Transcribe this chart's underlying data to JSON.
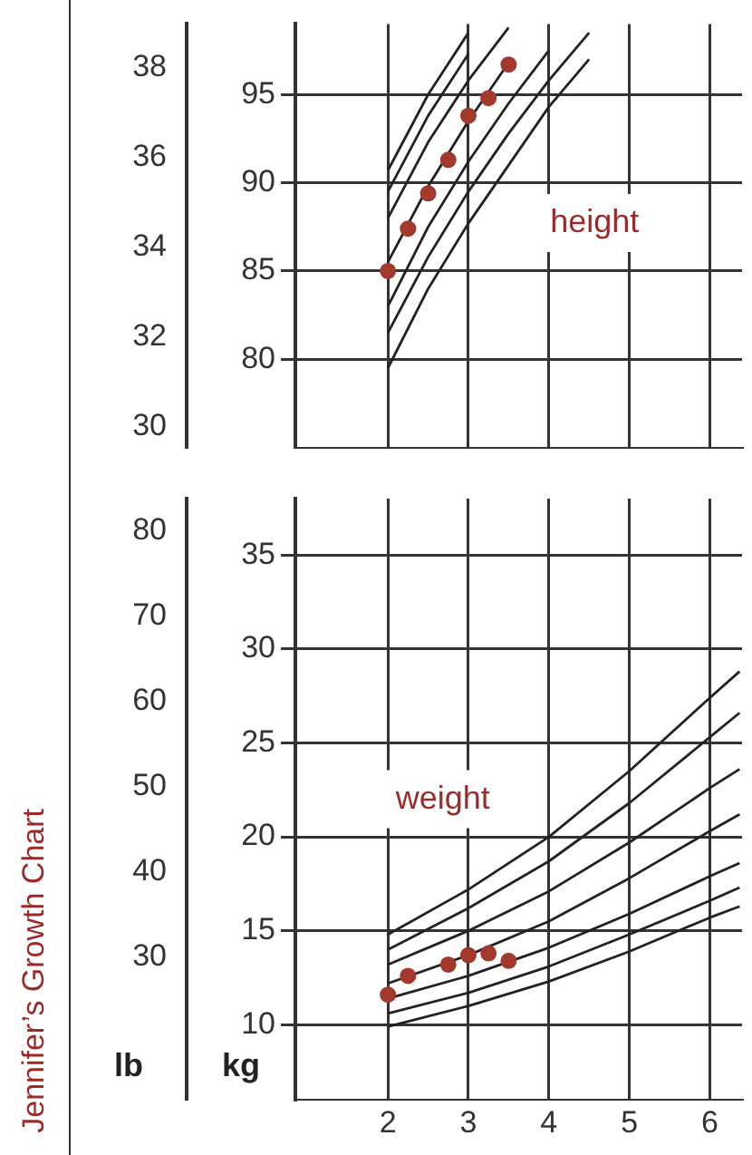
{
  "chart_data": [
    {
      "type": "line",
      "annotations": [
        "height"
      ],
      "xlim": [
        0.85,
        6.4
      ],
      "xticks": [
        2,
        3,
        4,
        5,
        6
      ],
      "ylim": [
        75,
        99
      ],
      "yticks": [
        80,
        85,
        90,
        95
      ],
      "y2lim": [
        29.53,
        38.98
      ],
      "y2ticks": [
        30,
        32,
        34,
        36,
        38
      ],
      "grid": true,
      "legend": false,
      "tick_labels": "y",
      "line_style": "solid",
      "series": [
        {
          "color": "#222222",
          "marker": "none",
          "x": [
            2,
            2.5,
            3
          ],
          "values": [
            90.7,
            95,
            98.5
          ]
        },
        {
          "color": "#222222",
          "marker": "none",
          "x": [
            2,
            2.5,
            3
          ],
          "values": [
            89.5,
            93.8,
            97.3
          ]
        },
        {
          "color": "#222222",
          "marker": "none",
          "x": [
            2,
            2.5,
            3,
            3.5
          ],
          "values": [
            88,
            92.3,
            95.8,
            98.8
          ]
        },
        {
          "color": "#222222",
          "marker": "none",
          "x": [
            2,
            2.5,
            3,
            3.5
          ],
          "values": [
            85.5,
            89.8,
            93.5,
            96.8
          ]
        },
        {
          "color": "#222222",
          "marker": "none",
          "x": [
            2,
            2.5,
            3,
            3.5,
            4
          ],
          "values": [
            83,
            87.5,
            91.2,
            94.5,
            97.5
          ]
        },
        {
          "color": "#222222",
          "marker": "none",
          "x": [
            2,
            2.5,
            3,
            3.5,
            4,
            4.5
          ],
          "values": [
            81.5,
            85.8,
            89.5,
            92.8,
            95.8,
            98.5
          ]
        },
        {
          "color": "#222222",
          "marker": "none",
          "x": [
            2,
            2.5,
            3,
            3.5,
            4,
            4.5
          ],
          "values": [
            79.5,
            84,
            87.7,
            91,
            94.3,
            97
          ]
        },
        {
          "type": "scatter",
          "color": "#a3392c",
          "marker": "circle",
          "x": [
            2,
            2.25,
            2.5,
            2.75,
            3,
            3.25,
            3.5
          ],
          "values": [
            85,
            87.4,
            89.4,
            91.3,
            93.8,
            94.8,
            96.7
          ]
        }
      ]
    },
    {
      "type": "line",
      "title": "Jennifer’s Growth Chart",
      "annotations": [
        "weight"
      ],
      "ylabel": "kg",
      "y2label": "lb",
      "xlim": [
        0.85,
        6.4
      ],
      "xticks": [
        2,
        3,
        4,
        5,
        6
      ],
      "ylim": [
        6,
        38
      ],
      "yticks": [
        10,
        15,
        20,
        25,
        30,
        35
      ],
      "y2lim": [
        13.23,
        83.78
      ],
      "y2ticks": [
        30,
        40,
        50,
        60,
        70,
        80
      ],
      "grid": true,
      "legend": false,
      "line_style": "solid",
      "series": [
        {
          "color": "#222222",
          "marker": "none",
          "x": [
            2,
            3,
            4,
            5,
            6,
            6.37
          ],
          "values": [
            14.8,
            17.2,
            20,
            23.5,
            27.4,
            28.8
          ]
        },
        {
          "color": "#222222",
          "marker": "none",
          "x": [
            2,
            3,
            4,
            5,
            6,
            6.37
          ],
          "values": [
            14,
            16.2,
            18.7,
            21.8,
            25.3,
            26.6
          ]
        },
        {
          "color": "#222222",
          "marker": "none",
          "x": [
            2,
            3,
            4,
            5,
            6,
            6.37
          ],
          "values": [
            13.2,
            15,
            17.1,
            19.7,
            22.6,
            23.6
          ]
        },
        {
          "color": "#222222",
          "marker": "none",
          "x": [
            2,
            3,
            4,
            5,
            6,
            6.37
          ],
          "values": [
            12.2,
            13.7,
            15.5,
            17.8,
            20.3,
            21.2
          ]
        },
        {
          "color": "#222222",
          "marker": "none",
          "x": [
            2,
            3,
            4,
            5,
            6,
            6.37
          ],
          "values": [
            11.4,
            12.6,
            14.1,
            15.9,
            17.9,
            18.6
          ]
        },
        {
          "color": "#222222",
          "marker": "none",
          "x": [
            2,
            3,
            4,
            5,
            6,
            6.37
          ],
          "values": [
            10.6,
            11.7,
            13.1,
            14.8,
            16.6,
            17.3
          ]
        },
        {
          "color": "#222222",
          "marker": "none",
          "x": [
            2,
            3,
            4,
            5,
            6,
            6.37
          ],
          "values": [
            9.9,
            11,
            12.3,
            13.9,
            15.7,
            16.3
          ]
        },
        {
          "type": "scatter",
          "color": "#a3392c",
          "marker": "circle",
          "x": [
            2,
            2.25,
            2.75,
            3,
            3.25,
            3.5
          ],
          "values": [
            11.6,
            12.6,
            13.2,
            13.7,
            13.8,
            13.4
          ]
        }
      ]
    }
  ]
}
